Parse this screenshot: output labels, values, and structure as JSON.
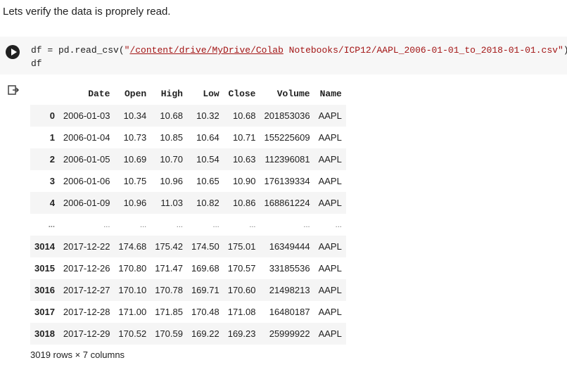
{
  "markdown": {
    "text": "Lets verify the data is proprely read."
  },
  "code_cell": {
    "line1_prefix": "df = pd.read_csv(",
    "line1_quote_open": "\"",
    "line1_path": "/content/drive/MyDrive/Colab",
    "line1_rest": " Notebooks/ICP12/AAPL_2006-01-01_to_2018-01-01.csv\"",
    "line1_suffix": ")",
    "line2": "df"
  },
  "dataframe": {
    "columns": [
      "",
      "Date",
      "Open",
      "High",
      "Low",
      "Close",
      "Volume",
      "Name"
    ],
    "rows": [
      [
        "0",
        "2006-01-03",
        "10.34",
        "10.68",
        "10.32",
        "10.68",
        "201853036",
        "AAPL"
      ],
      [
        "1",
        "2006-01-04",
        "10.73",
        "10.85",
        "10.64",
        "10.71",
        "155225609",
        "AAPL"
      ],
      [
        "2",
        "2006-01-05",
        "10.69",
        "10.70",
        "10.54",
        "10.63",
        "112396081",
        "AAPL"
      ],
      [
        "3",
        "2006-01-06",
        "10.75",
        "10.96",
        "10.65",
        "10.90",
        "176139334",
        "AAPL"
      ],
      [
        "4",
        "2006-01-09",
        "10.96",
        "11.03",
        "10.82",
        "10.86",
        "168861224",
        "AAPL"
      ],
      [
        "...",
        "...",
        "...",
        "...",
        "...",
        "...",
        "...",
        "..."
      ],
      [
        "3014",
        "2017-12-22",
        "174.68",
        "175.42",
        "174.50",
        "175.01",
        "16349444",
        "AAPL"
      ],
      [
        "3015",
        "2017-12-26",
        "170.80",
        "171.47",
        "169.68",
        "170.57",
        "33185536",
        "AAPL"
      ],
      [
        "3016",
        "2017-12-27",
        "170.10",
        "170.78",
        "169.71",
        "170.60",
        "21498213",
        "AAPL"
      ],
      [
        "3017",
        "2017-12-28",
        "171.00",
        "171.85",
        "170.48",
        "171.08",
        "16480187",
        "AAPL"
      ],
      [
        "3018",
        "2017-12-29",
        "170.52",
        "170.59",
        "169.22",
        "169.23",
        "25999922",
        "AAPL"
      ]
    ],
    "footer": "3019 rows × 7 columns"
  },
  "icons": {
    "run": "play-icon",
    "output": "output-redirect-icon"
  }
}
